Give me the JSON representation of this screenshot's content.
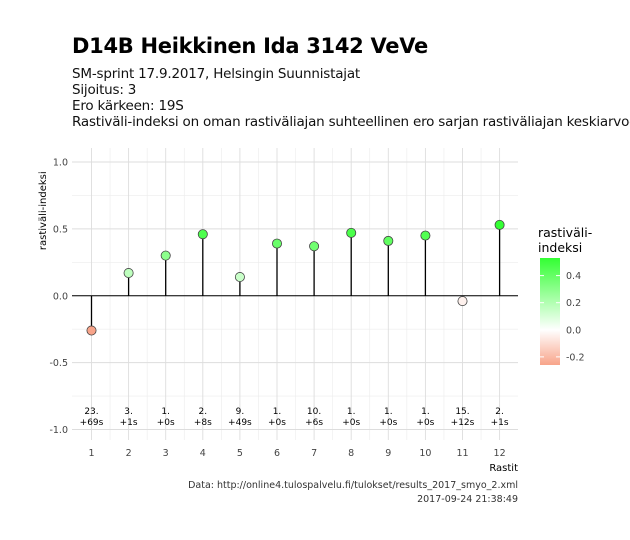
{
  "header": {
    "title": "D14B Heikkinen Ida 3142 VeVe",
    "subtitle_lines": [
      "SM-sprint 17.9.2017, Helsingin Suunnistajat",
      "Sijoitus: 3",
      "Ero kärkeen: 19S",
      "Rastiväli-indeksi on oman rastiväliajan suhteellinen ero sarjan rastiväliajan keskiarvoon"
    ]
  },
  "caption": {
    "source": "Data: http://online4.tulospalvelu.fi/tulokset/results_2017_smyo_2.xml",
    "timestamp": "2017-09-24 21:38:49"
  },
  "legend": {
    "title_line1": "rastiväli-",
    "title_line2": "indeksi",
    "ticks": [
      0.4,
      0.2,
      0.0,
      -0.2
    ],
    "tick_labels": [
      "0.4",
      "0.2",
      "0.0",
      "-0.2"
    ],
    "colors": {
      "high": "#33ff33",
      "mid": "#ffffff",
      "low": "#f8a48a"
    }
  },
  "chart_data": {
    "type": "lollipop",
    "xlabel": "Rastit",
    "ylabel": "rastiväli-indeksi",
    "ylim": [
      -1.0,
      1.0
    ],
    "yticks": [
      -1.0,
      -0.5,
      0.0,
      0.5,
      1.0
    ],
    "ytick_labels": [
      "-1.0",
      "-0.5",
      "0.0",
      "0.5",
      "1.0"
    ],
    "categories": [
      "1",
      "2",
      "3",
      "4",
      "5",
      "6",
      "7",
      "8",
      "9",
      "10",
      "11",
      "12"
    ],
    "values": [
      -0.26,
      0.17,
      0.3,
      0.46,
      0.14,
      0.39,
      0.37,
      0.47,
      0.41,
      0.45,
      -0.04,
      0.53
    ],
    "rank_labels": [
      "23.",
      "3.",
      "1.",
      "2.",
      "9.",
      "1.",
      "10.",
      "1.",
      "1.",
      "1.",
      "15.",
      "2."
    ],
    "diff_labels": [
      "+69s",
      "+1s",
      "+0s",
      "+8s",
      "+49s",
      "+0s",
      "+6s",
      "+0s",
      "+0s",
      "+0s",
      "+12s",
      "+1s"
    ],
    "grid": true
  }
}
